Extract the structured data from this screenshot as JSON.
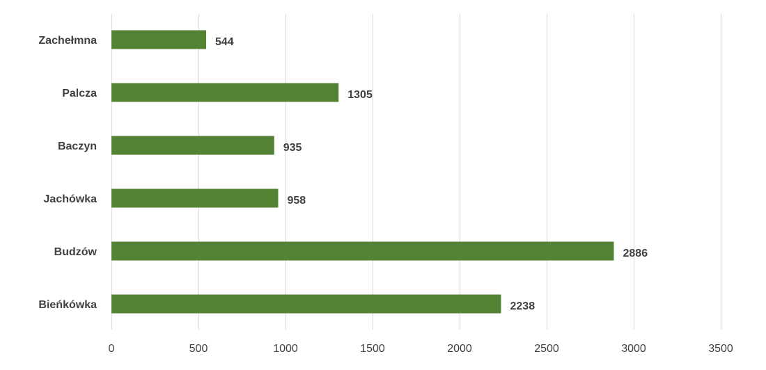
{
  "chart_data": {
    "type": "bar",
    "orientation": "horizontal",
    "categories": [
      "Zachełmna",
      "Palcza",
      "Baczyn",
      "Jachówka",
      "Budzów",
      "Bieńkówka"
    ],
    "values": [
      544,
      1305,
      935,
      958,
      2886,
      2238
    ],
    "value_labels": [
      "544",
      "1305",
      "935",
      "958",
      "2886",
      "2238"
    ],
    "x_ticks": [
      0,
      500,
      1000,
      1500,
      2000,
      2500,
      3000,
      3500
    ],
    "xlim": [
      0,
      3500
    ],
    "grid": "vertical",
    "legend": "none",
    "bar_color": "#548235",
    "gridline_color": "#d9d9d9",
    "text_color": "#404040"
  }
}
